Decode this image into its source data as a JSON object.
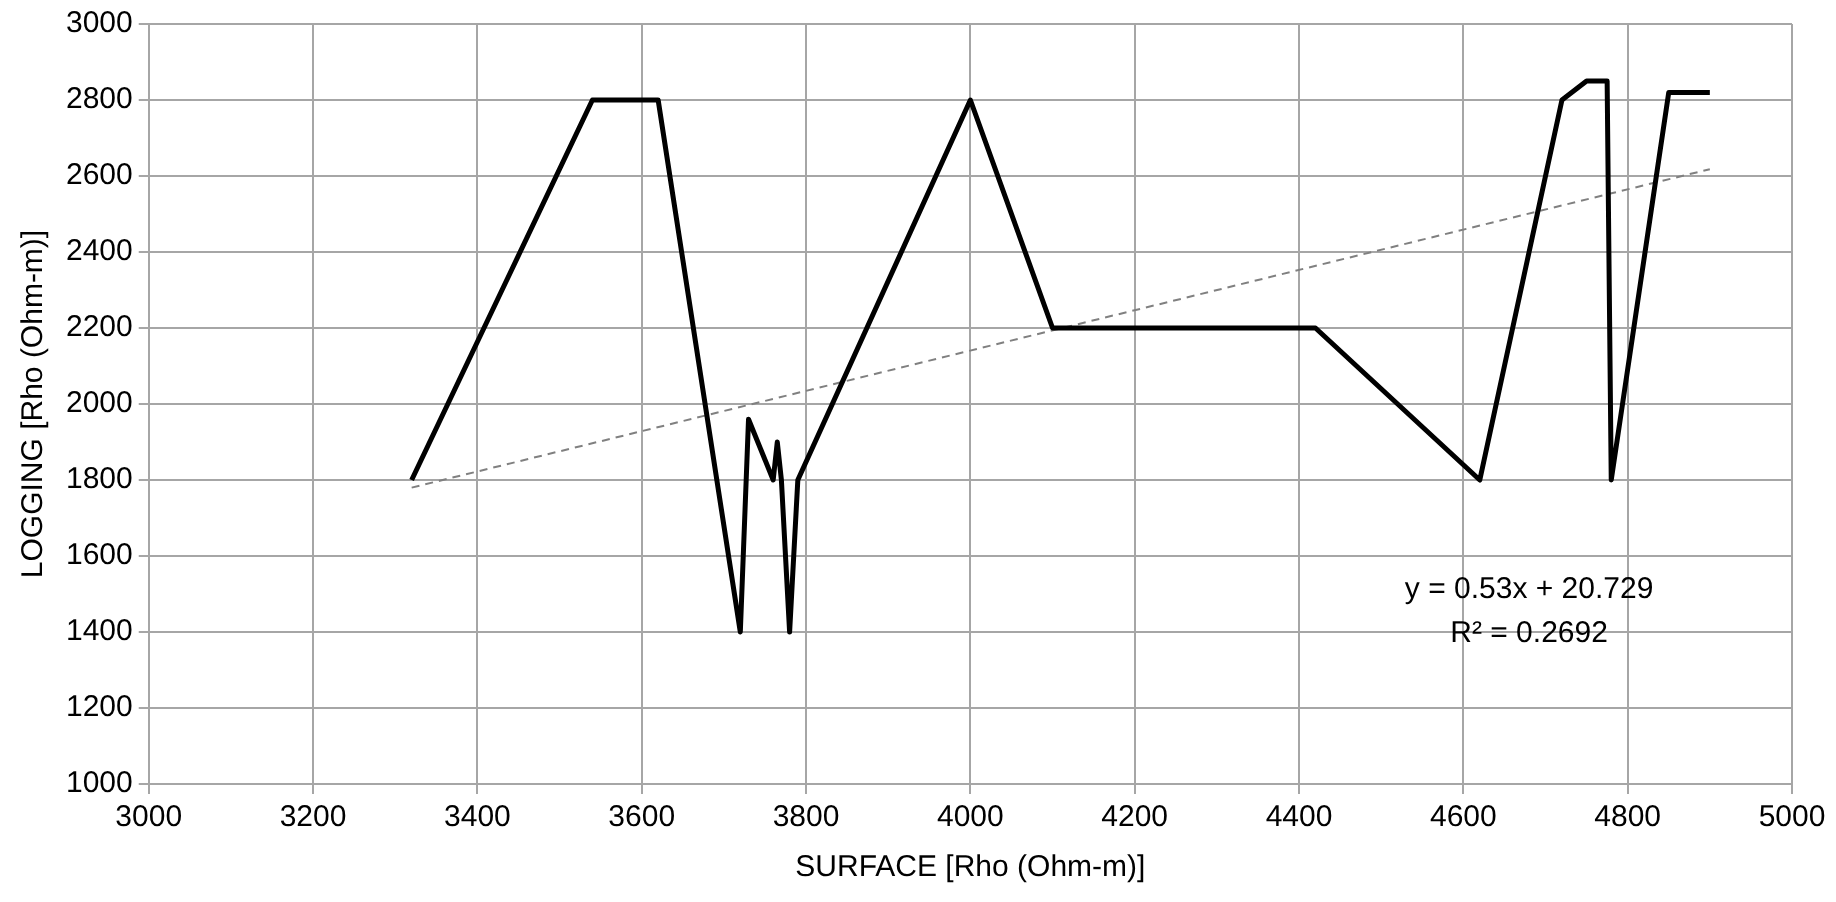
{
  "chart_data": {
    "type": "line",
    "xlabel": "SURFACE [Rho (Ohm-m)]",
    "ylabel": "LOGGING [Rho (Ohm-m)]",
    "xlim": [
      3000,
      5000
    ],
    "xticks": [
      3000,
      3200,
      3400,
      3600,
      3800,
      4000,
      4200,
      4400,
      4600,
      4800,
      5000
    ],
    "ylim": [
      1000,
      3000
    ],
    "yticks": [
      1000,
      1200,
      1400,
      1600,
      1800,
      2000,
      2200,
      2400,
      2600,
      2800,
      3000
    ],
    "grid": true,
    "legend": false,
    "marker": "none",
    "series": [
      {
        "color": "#000000",
        "line_style": "solid",
        "x": [
          3320,
          3540,
          3620,
          3720,
          3730,
          3760,
          3765,
          3770,
          3780,
          3790,
          4000,
          4100,
          4420,
          4620,
          4720,
          4750,
          4775,
          4780,
          4850,
          4900
        ],
        "values": [
          1800,
          2800,
          2800,
          1400,
          1960,
          1800,
          1900,
          1800,
          1400,
          1800,
          2800,
          2200,
          2200,
          1800,
          2800,
          2850,
          2850,
          1800,
          2820,
          2820
        ]
      },
      {
        "type": "line",
        "color": "#808080",
        "line_style": "dashed",
        "x": [
          3320,
          4900
        ],
        "values": [
          1780,
          2618
        ]
      }
    ],
    "annotations": [
      "y = 0.53x + 20.729",
      "R² = 0.2692"
    ]
  }
}
